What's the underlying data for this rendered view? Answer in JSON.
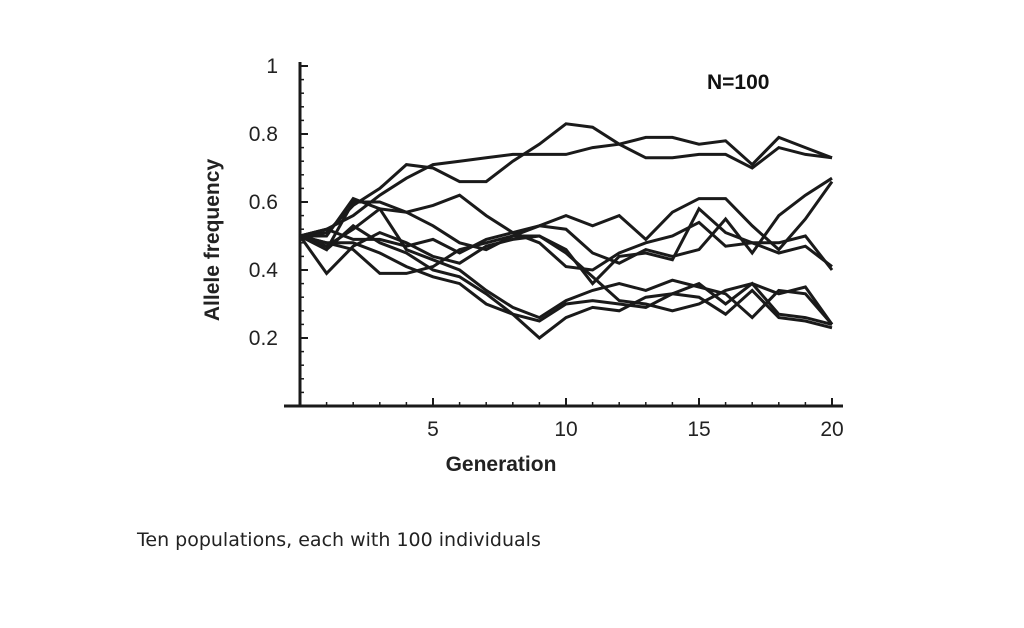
{
  "caption": "Ten populations, each with 100 individuals",
  "chart_data": {
    "type": "line",
    "title": "",
    "annotation": "N=100",
    "xlabel": "Generation",
    "ylabel": "Allele frequency",
    "xlim": [
      0,
      20
    ],
    "ylim": [
      0,
      1
    ],
    "x_ticks": [
      5,
      10,
      15,
      20
    ],
    "y_ticks": [
      0.2,
      0.4,
      0.6,
      0.8,
      1
    ],
    "y_tick_labels": [
      "0.2",
      "0.4",
      "0.6",
      "0.8",
      "1"
    ],
    "line_color": "#1a1a1a",
    "x": [
      0,
      1,
      2,
      3,
      4,
      5,
      6,
      7,
      8,
      9,
      10,
      11,
      12,
      13,
      14,
      15,
      16,
      17,
      18,
      19,
      20
    ],
    "series": [
      {
        "values": [
          0.5,
          0.51,
          0.59,
          0.64,
          0.71,
          0.7,
          0.66,
          0.66,
          0.72,
          0.77,
          0.83,
          0.82,
          0.77,
          0.73,
          0.73,
          0.74,
          0.74,
          0.7,
          0.76,
          0.74,
          0.73
        ]
      },
      {
        "values": [
          0.5,
          0.52,
          0.56,
          0.62,
          0.67,
          0.71,
          0.72,
          0.73,
          0.74,
          0.74,
          0.74,
          0.76,
          0.77,
          0.79,
          0.79,
          0.77,
          0.78,
          0.71,
          0.79,
          0.76,
          0.73
        ]
      },
      {
        "values": [
          0.5,
          0.47,
          0.52,
          0.58,
          0.57,
          0.59,
          0.62,
          0.56,
          0.51,
          0.53,
          0.56,
          0.53,
          0.56,
          0.49,
          0.57,
          0.61,
          0.61,
          0.53,
          0.46,
          0.55,
          0.66
        ]
      },
      {
        "values": [
          0.5,
          0.46,
          0.6,
          0.6,
          0.57,
          0.53,
          0.48,
          0.46,
          0.5,
          0.53,
          0.52,
          0.45,
          0.42,
          0.46,
          0.44,
          0.46,
          0.55,
          0.45,
          0.56,
          0.62,
          0.67
        ]
      },
      {
        "values": [
          0.5,
          0.39,
          0.47,
          0.51,
          0.48,
          0.44,
          0.42,
          0.47,
          0.49,
          0.5,
          0.45,
          0.38,
          0.31,
          0.3,
          0.28,
          0.3,
          0.34,
          0.36,
          0.33,
          0.35,
          0.24
        ]
      },
      {
        "values": [
          0.5,
          0.48,
          0.48,
          0.45,
          0.41,
          0.38,
          0.36,
          0.3,
          0.27,
          0.25,
          0.3,
          0.31,
          0.3,
          0.29,
          0.33,
          0.36,
          0.3,
          0.36,
          0.27,
          0.26,
          0.24
        ]
      },
      {
        "values": [
          0.5,
          0.5,
          0.61,
          0.58,
          0.46,
          0.43,
          0.4,
          0.34,
          0.29,
          0.26,
          0.31,
          0.34,
          0.36,
          0.34,
          0.37,
          0.35,
          0.33,
          0.26,
          0.34,
          0.33,
          0.24
        ]
      },
      {
        "values": [
          0.5,
          0.46,
          0.53,
          0.48,
          0.45,
          0.4,
          0.38,
          0.33,
          0.27,
          0.2,
          0.26,
          0.29,
          0.28,
          0.32,
          0.33,
          0.32,
          0.27,
          0.34,
          0.26,
          0.25,
          0.23
        ]
      },
      {
        "values": [
          0.5,
          0.48,
          0.46,
          0.39,
          0.39,
          0.41,
          0.46,
          0.48,
          0.5,
          0.5,
          0.46,
          0.36,
          0.44,
          0.45,
          0.43,
          0.58,
          0.51,
          0.48,
          0.45,
          0.47,
          0.41
        ]
      },
      {
        "values": [
          0.5,
          0.52,
          0.49,
          0.49,
          0.47,
          0.49,
          0.45,
          0.49,
          0.51,
          0.48,
          0.41,
          0.4,
          0.45,
          0.48,
          0.5,
          0.54,
          0.47,
          0.48,
          0.48,
          0.5,
          0.4
        ]
      }
    ]
  }
}
